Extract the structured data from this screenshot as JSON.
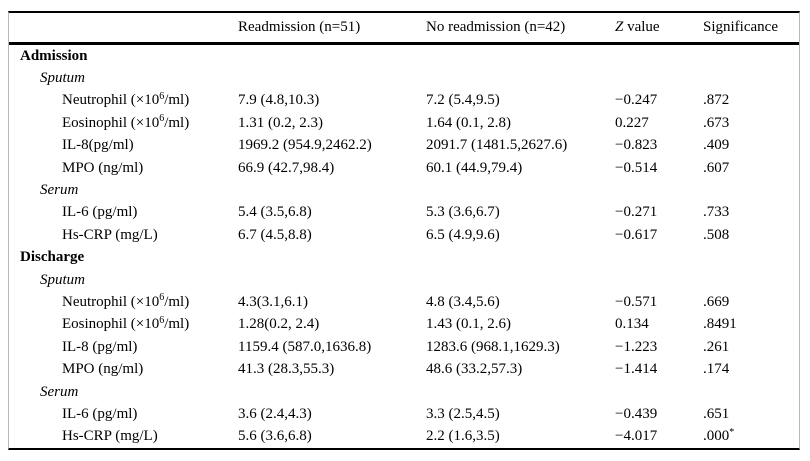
{
  "table": {
    "header": {
      "empty": "",
      "readmission": "Readmission (n=51)",
      "no_readmission": "No readmission (n=42)",
      "z_italic": "Z",
      "z_rest": " value",
      "significance": "Significance"
    },
    "footnote_marker": "*",
    "rows": [
      {
        "type": "section",
        "label": "Admission",
        "values": [
          "",
          "",
          "",
          ""
        ]
      },
      {
        "type": "group",
        "label": "Sputum",
        "values": [
          "",
          "",
          "",
          ""
        ]
      },
      {
        "type": "item",
        "label": [
          "Neutrophil (×10",
          {
            "sup": "6"
          },
          "/ml)"
        ],
        "values": [
          "7.9 (4.8,10.3)",
          "7.2 (5.4,9.5)",
          "−0.247",
          ".872"
        ]
      },
      {
        "type": "item",
        "label": [
          "Eosinophil (×10",
          {
            "sup": "6"
          },
          "/ml)"
        ],
        "values": [
          "1.31 (0.2, 2.3)",
          "1.64 (0.1, 2.8)",
          "0.227",
          ".673"
        ]
      },
      {
        "type": "item",
        "label": "IL-8(pg/ml)",
        "values": [
          "1969.2 (954.9,2462.2)",
          "2091.7 (1481.5,2627.6)",
          "−0.823",
          ".409"
        ]
      },
      {
        "type": "item",
        "label": "MPO (ng/ml)",
        "values": [
          "66.9 (42.7,98.4)",
          "60.1 (44.9,79.4)",
          "−0.514",
          ".607"
        ]
      },
      {
        "type": "group",
        "label": "Serum",
        "values": [
          "",
          "",
          "",
          ""
        ]
      },
      {
        "type": "item",
        "label": "IL-6 (pg/ml)",
        "values": [
          "5.4 (3.5,6.8)",
          "5.3 (3.6,6.7)",
          "−0.271",
          ".733"
        ]
      },
      {
        "type": "item",
        "label": "Hs-CRP (mg/L)",
        "values": [
          "6.7 (4.5,8.8)",
          "6.5 (4.9,9.6)",
          "−0.617",
          ".508"
        ]
      },
      {
        "type": "section",
        "label": "Discharge",
        "values": [
          "",
          "",
          "",
          ""
        ]
      },
      {
        "type": "group",
        "label": "Sputum",
        "values": [
          "",
          "",
          "",
          ""
        ]
      },
      {
        "type": "item",
        "label": [
          "Neutrophil (×10",
          {
            "sup": "6"
          },
          "/ml)"
        ],
        "values": [
          "4.3(3.1,6.1)",
          "4.8 (3.4,5.6)",
          "−0.571",
          ".669"
        ]
      },
      {
        "type": "item",
        "label": [
          "Eosinophil (×10",
          {
            "sup": "6"
          },
          "/ml)"
        ],
        "values": [
          "1.28(0.2, 2.4)",
          "1.43 (0.1, 2.6)",
          "0.134",
          ".8491"
        ]
      },
      {
        "type": "item",
        "label": "IL-8 (pg/ml)",
        "values": [
          "1159.4 (587.0,1636.8)",
          "1283.6 (968.1,1629.3)",
          "−1.223",
          ".261"
        ]
      },
      {
        "type": "item",
        "label": "MPO (ng/ml)",
        "values": [
          "41.3 (28.3,55.3)",
          "48.6 (33.2,57.3)",
          "−1.414",
          ".174"
        ]
      },
      {
        "type": "group",
        "label": "Serum",
        "values": [
          "",
          "",
          "",
          ""
        ]
      },
      {
        "type": "item",
        "label": "IL-6 (pg/ml)",
        "values": [
          "3.6 (2.4,4.3)",
          "3.3 (2.5,4.5)",
          "−0.439",
          ".651"
        ]
      },
      {
        "type": "item",
        "label": "Hs-CRP (mg/L)",
        "values": [
          "5.6 (3.6,6.8)",
          "2.2 (1.6,3.5)",
          "−4.017",
          {
            "v": ".000",
            "sup": "*"
          }
        ]
      }
    ]
  }
}
